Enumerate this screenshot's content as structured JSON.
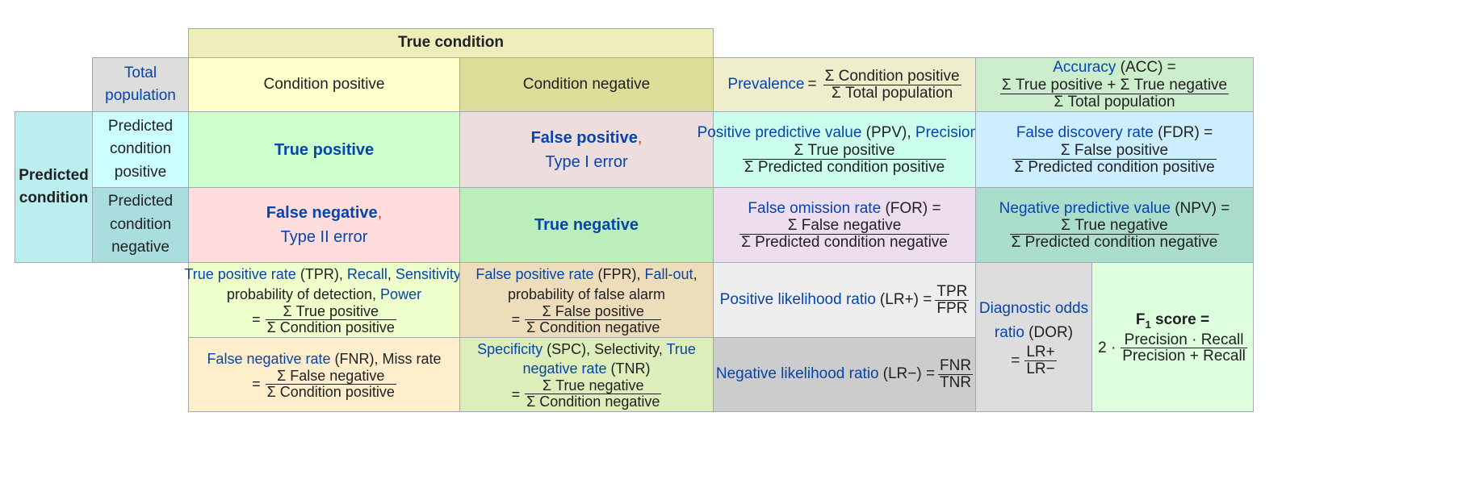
{
  "header": {
    "true_condition": "True condition"
  },
  "corner": {
    "total_population": "Total population"
  },
  "columns": {
    "condition_positive": "Condition positive",
    "condition_negative": "Condition negative"
  },
  "rows": {
    "predicted_condition": "Predicted condition",
    "predicted_positive": "Predicted condition positive",
    "predicted_negative": "Predicted condition negative"
  },
  "cells": {
    "tp": "True positive",
    "fp": "False positive",
    "fp_type": "Type I error",
    "fn": "False negative",
    "fn_type": "Type II error",
    "tn": "True negative",
    "comma": ","
  },
  "prevalence": {
    "label": "Prevalence",
    "eq": "=",
    "num": "Σ Condition positive",
    "den": "Σ Total population"
  },
  "accuracy": {
    "label": "Accuracy",
    "abbr": "(ACC) =",
    "num": "Σ True positive + Σ True negative",
    "den": "Σ Total population"
  },
  "ppv": {
    "label1": "Positive predictive value",
    "abbr": "(PPV),",
    "label2": "Precision",
    "eq": "=",
    "num": "Σ True positive",
    "den": "Σ Predicted condition positive"
  },
  "fdr": {
    "label": "False discovery rate",
    "abbr": "(FDR) =",
    "num": "Σ False positive",
    "den": "Σ Predicted condition positive"
  },
  "for": {
    "label": "False omission rate",
    "abbr": "(FOR) =",
    "num": "Σ False negative",
    "den": "Σ Predicted condition negative"
  },
  "npv": {
    "label": "Negative predictive value",
    "abbr": "(NPV) =",
    "num": "Σ True negative",
    "den": "Σ Predicted condition negative"
  },
  "tpr": {
    "label1": "True positive rate",
    "abbr": "(TPR),",
    "label2": "Recall",
    "label3": "Sensitivity",
    "text": "probability of detection,",
    "label4": "Power",
    "eq": "=",
    "num": "Σ True positive",
    "den": "Σ Condition positive"
  },
  "fpr": {
    "label1": "False positive rate",
    "abbr": "(FPR),",
    "label2": "Fall-out",
    "text": "probability of false alarm",
    "eq": "=",
    "num": "Σ False positive",
    "den": "Σ Condition negative"
  },
  "fnr": {
    "label": "False negative rate",
    "abbr": "(FNR), Miss rate",
    "eq": "=",
    "num": "Σ False negative",
    "den": "Σ Condition positive"
  },
  "spc": {
    "label1": "Specificity",
    "abbr": "(SPC), Selectivity,",
    "label2a": "True",
    "label2b": "negative rate",
    "abbr2": "(TNR)",
    "eq": "=",
    "num": "Σ True negative",
    "den": "Σ Condition negative"
  },
  "lrp": {
    "label": "Positive likelihood ratio",
    "abbr": "(LR+) =",
    "num": "TPR",
    "den": "FPR"
  },
  "lrn": {
    "label": "Negative likelihood ratio",
    "abbr": "(LR−) =",
    "num": "FNR",
    "den": "TNR"
  },
  "dor": {
    "label1": "Diagnostic odds",
    "label2": "ratio",
    "abbr": "(DOR)",
    "eq": "=",
    "num": "LR+",
    "den": "LR−"
  },
  "f1": {
    "label": "F",
    "sub": "1",
    "label2": "score =",
    "factor": "2 ·",
    "num": "Precision · Recall",
    "den": "Precision + Recall"
  }
}
